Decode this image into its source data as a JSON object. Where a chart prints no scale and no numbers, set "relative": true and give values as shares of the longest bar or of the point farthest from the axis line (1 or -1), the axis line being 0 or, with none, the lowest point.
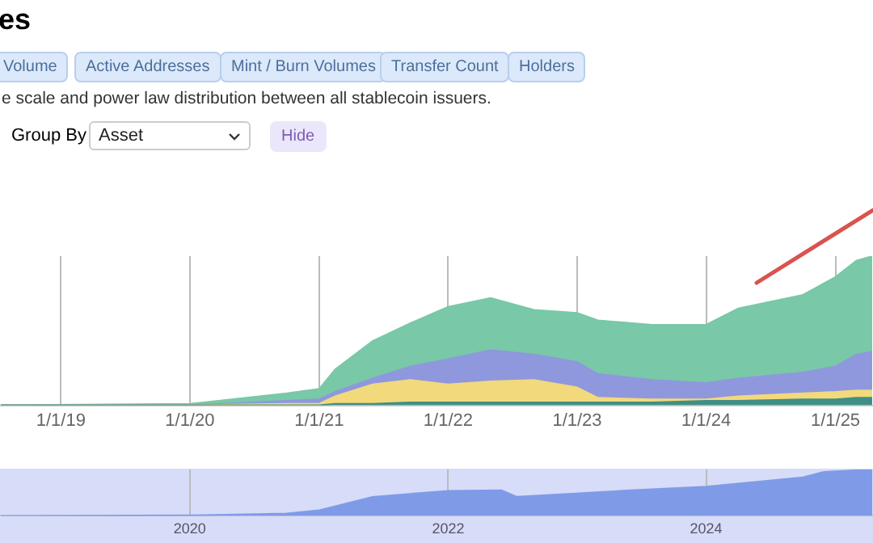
{
  "chart_data": [
    {
      "type": "area",
      "title": "es",
      "subtitle": "e scale and power law distribution between all stablecoin issuers.",
      "annotations": [
        "Volume",
        "Active Addresses",
        "Mint / Burn Volumes",
        "Transfer Count",
        "Holders",
        "Group By",
        "Asset",
        "Hide"
      ],
      "relative": true,
      "stacked": true,
      "grid": "x",
      "legend": false,
      "x": [
        "2018-07-15",
        "2020-01-01",
        "2020-10-01",
        "2021-01-01",
        "2021-02-15",
        "2021-06-01",
        "2021-09-15",
        "2022-01-01",
        "2022-05-01",
        "2022-09-01",
        "2023-01-01",
        "2023-03-01",
        "2023-08-01",
        "2024-01-01",
        "2024-04-01",
        "2024-10-01",
        "2025-01-01",
        "2025-03-01",
        "2025-04-15"
      ],
      "xlim": [
        "2018-07-15",
        "2025-04-15"
      ],
      "xticks": [
        {
          "value": "2019-01-01",
          "label": "1/1/19"
        },
        {
          "value": "2020-01-01",
          "label": "1/1/20"
        },
        {
          "value": "2021-01-01",
          "label": "1/1/21"
        },
        {
          "value": "2022-01-01",
          "label": "1/1/22"
        },
        {
          "value": "2023-01-01",
          "label": "1/1/23"
        },
        {
          "value": "2024-01-01",
          "label": "1/1/24"
        },
        {
          "value": "2025-01-01",
          "label": "1/1/25"
        }
      ],
      "series": [
        {
          "color": "#3f8f86",
          "values": [
            0,
            0,
            0,
            0,
            0.01,
            0.01,
            0.02,
            0.02,
            0.02,
            0.02,
            0.02,
            0.02,
            0.02,
            0.03,
            0.03,
            0.04,
            0.04,
            0.05,
            0.05
          ]
        },
        {
          "color": "#f2d97c",
          "values": [
            0,
            0,
            0.01,
            0.01,
            0.05,
            0.13,
            0.15,
            0.12,
            0.14,
            0.15,
            0.1,
            0.03,
            0.02,
            0.01,
            0.03,
            0.04,
            0.05,
            0.05,
            0.05
          ]
        },
        {
          "color": "#8f98dc",
          "values": [
            0,
            0,
            0.02,
            0.03,
            0.03,
            0.04,
            0.09,
            0.17,
            0.21,
            0.17,
            0.17,
            0.16,
            0.13,
            0.11,
            0.12,
            0.14,
            0.17,
            0.24,
            0.26
          ]
        },
        {
          "color": "#79c8a8",
          "values": [
            0,
            0.01,
            0.05,
            0.07,
            0.15,
            0.25,
            0.29,
            0.35,
            0.35,
            0.3,
            0.33,
            0.36,
            0.37,
            0.39,
            0.47,
            0.52,
            0.6,
            0.63,
            0.64
          ]
        }
      ]
    },
    {
      "type": "area",
      "relative": true,
      "grid": "x",
      "legend": false,
      "x": [
        "2018-07-15",
        "2020-01-01",
        "2020-10-01",
        "2021-01-01",
        "2021-06-01",
        "2022-01-01",
        "2022-06-01",
        "2022-07-15",
        "2023-06-01",
        "2024-01-01",
        "2024-10-01",
        "2024-12-01",
        "2025-04-15"
      ],
      "xlim": [
        "2018-07-15",
        "2025-04-15"
      ],
      "xticks": [
        {
          "value": "2020-01-01",
          "label": "2020"
        },
        {
          "value": "2022-01-01",
          "label": "2022"
        },
        {
          "value": "2024-01-01",
          "label": "2024"
        }
      ],
      "series": [
        {
          "color": "#7f9be8",
          "values": [
            0,
            0.01,
            0.05,
            0.12,
            0.41,
            0.54,
            0.55,
            0.41,
            0.55,
            0.63,
            0.83,
            0.95,
            1
          ]
        }
      ]
    }
  ]
}
